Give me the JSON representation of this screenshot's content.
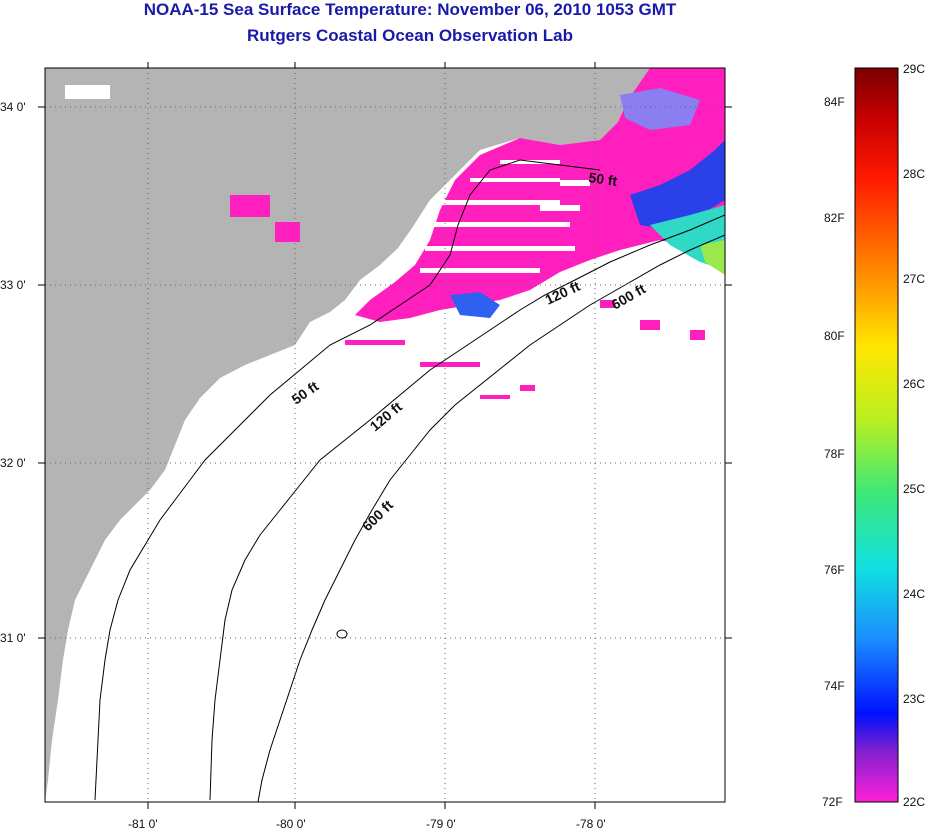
{
  "title": {
    "line1": "NOAA-15 Sea Surface Temperature:  November 06, 2010 1053 GMT",
    "line2": "Rutgers Coastal Ocean Observation Lab"
  },
  "colors": {
    "land": "#b4b4b4",
    "ocean": "#ffffff",
    "sst_warm_cluster": "#ff1fbf"
  },
  "axes": {
    "lat_labels": [
      "34 0'",
      "33 0'",
      "32 0'",
      "31 0'"
    ],
    "lon_labels": [
      "-81 0'",
      "-80 0'",
      "-79 0'",
      "-78 0'"
    ]
  },
  "contours": {
    "labels": [
      "50 ft",
      "120 ft",
      "600 ft",
      "50 ft",
      "120 ft",
      "600 ft"
    ]
  },
  "colorbar": {
    "celsius": [
      "29C",
      "28C",
      "27C",
      "26C",
      "25C",
      "24C",
      "23C",
      "22C"
    ],
    "fahrenheit": [
      "84F",
      "82F",
      "80F",
      "78F",
      "76F",
      "74F",
      "72F"
    ],
    "range_c": [
      22,
      29
    ]
  }
}
